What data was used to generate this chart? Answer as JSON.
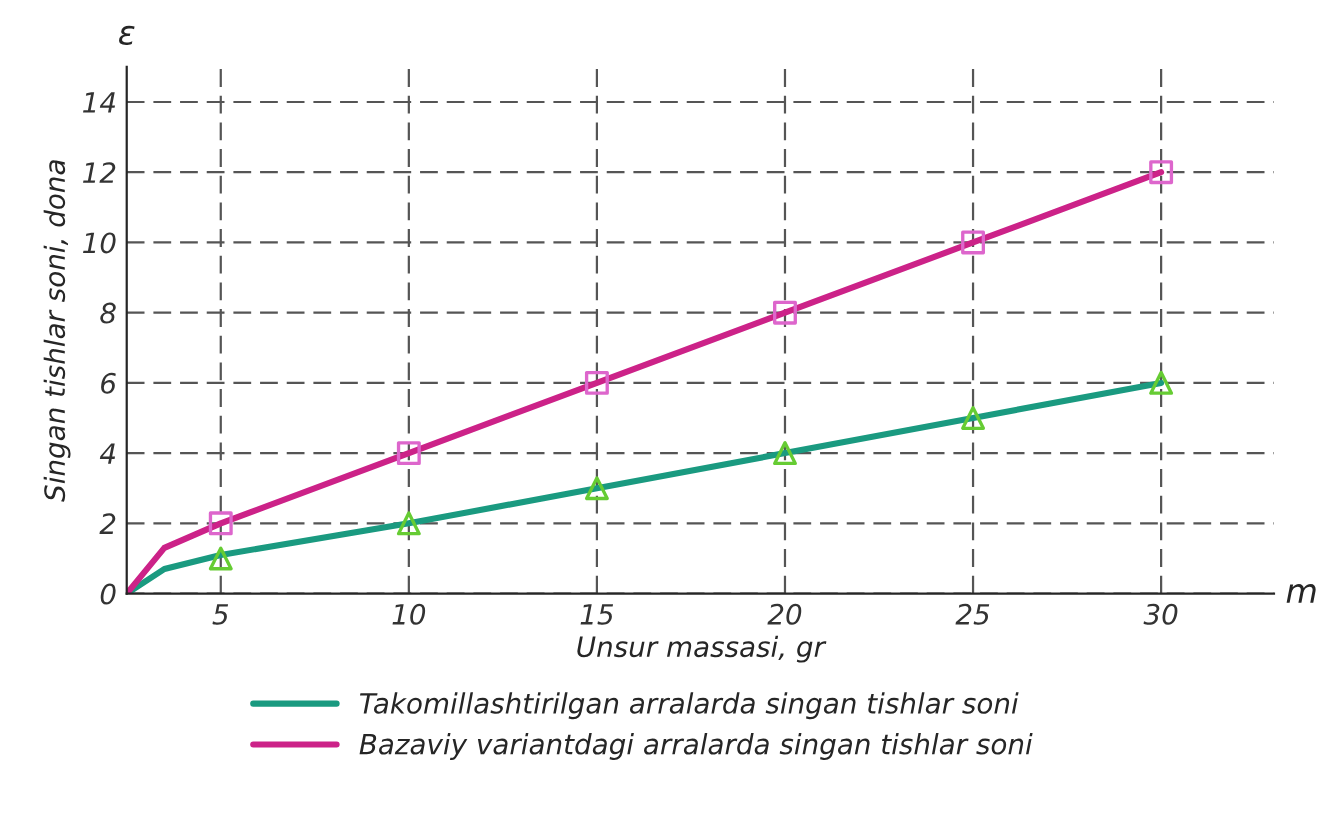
{
  "chart_data": {
    "type": "line",
    "xlabel": "Unsur massasi, gr",
    "ylabel": "Singan tishlar soni, dona",
    "annotations": [
      "ε",
      "m"
    ],
    "xlim": [
      2.5,
      33
    ],
    "ylim": [
      0,
      15
    ],
    "xticks": [
      5,
      10,
      15,
      20,
      25,
      30
    ],
    "yticks": [
      0,
      2,
      4,
      6,
      8,
      10,
      12,
      14
    ],
    "grid": true,
    "legend": "bottom",
    "line_style": "solid",
    "series": [
      {
        "name": "Takomillashtirilgan arralarda singan tishlar soni",
        "color": "#1a9a80",
        "x": [
          2.5,
          3.5,
          5,
          10,
          15,
          20,
          25,
          30
        ],
        "values": [
          0,
          0.7,
          1.1,
          2,
          3,
          4,
          5,
          6
        ],
        "marker": "none"
      },
      {
        "name": "Bazaviy variantdagi arralarda singan tishlar soni",
        "color": "#cc2288",
        "x": [
          2.5,
          3.5,
          5,
          10,
          15,
          20,
          25,
          30
        ],
        "values": [
          0,
          1.3,
          2,
          4,
          6,
          8,
          10,
          12
        ],
        "marker": "none"
      },
      {
        "type": "scatter",
        "color": "#66cc33",
        "x": [
          5,
          10,
          15,
          20,
          25,
          30
        ],
        "values": [
          1,
          2,
          3,
          4,
          5,
          6
        ],
        "marker": "triangle"
      },
      {
        "type": "scatter",
        "color": "#dd66cc",
        "x": [
          5,
          10,
          15,
          20,
          25,
          30
        ],
        "values": [
          2,
          4,
          6,
          8,
          10,
          12
        ],
        "marker": "square"
      }
    ]
  }
}
